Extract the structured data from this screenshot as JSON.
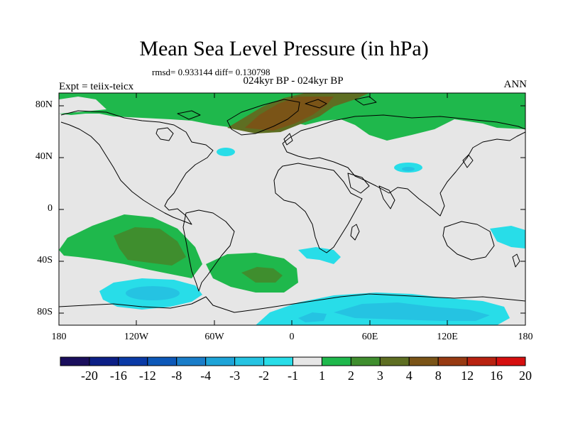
{
  "title": "Mean Sea Level Pressure (in hPa)",
  "stats": "rmsd= 0.933144 diff= 0.130798",
  "subtitle_center": "024kyr BP - 024kyr BP",
  "subtitle_left": "Expt = teiix-teicx",
  "subtitle_right": "ANN",
  "lat_labels": [
    "80N",
    "40N",
    "0",
    "40S",
    "80S"
  ],
  "lon_labels": [
    "180",
    "120W",
    "60W",
    "0",
    "60E",
    "120E",
    "180"
  ],
  "colorbar": {
    "labels": [
      "-20",
      "-16",
      "-12",
      "-8",
      "-4",
      "-3",
      "-2",
      "-1",
      "1",
      "2",
      "3",
      "4",
      "8",
      "12",
      "16",
      "20"
    ],
    "colors": [
      "#1a0e5c",
      "#0c1f86",
      "#0a3aa6",
      "#0d58b8",
      "#1a7dc9",
      "#1ea4d8",
      "#25c3e2",
      "#28dde8",
      "#e6e6e6",
      "#1fb84c",
      "#3f8e2e",
      "#5e6e22",
      "#7a5417",
      "#973a12",
      "#b82210",
      "#d60f0f"
    ]
  },
  "map": {
    "background_color": "#e6e6e6",
    "coastline_color": "#000000"
  }
}
